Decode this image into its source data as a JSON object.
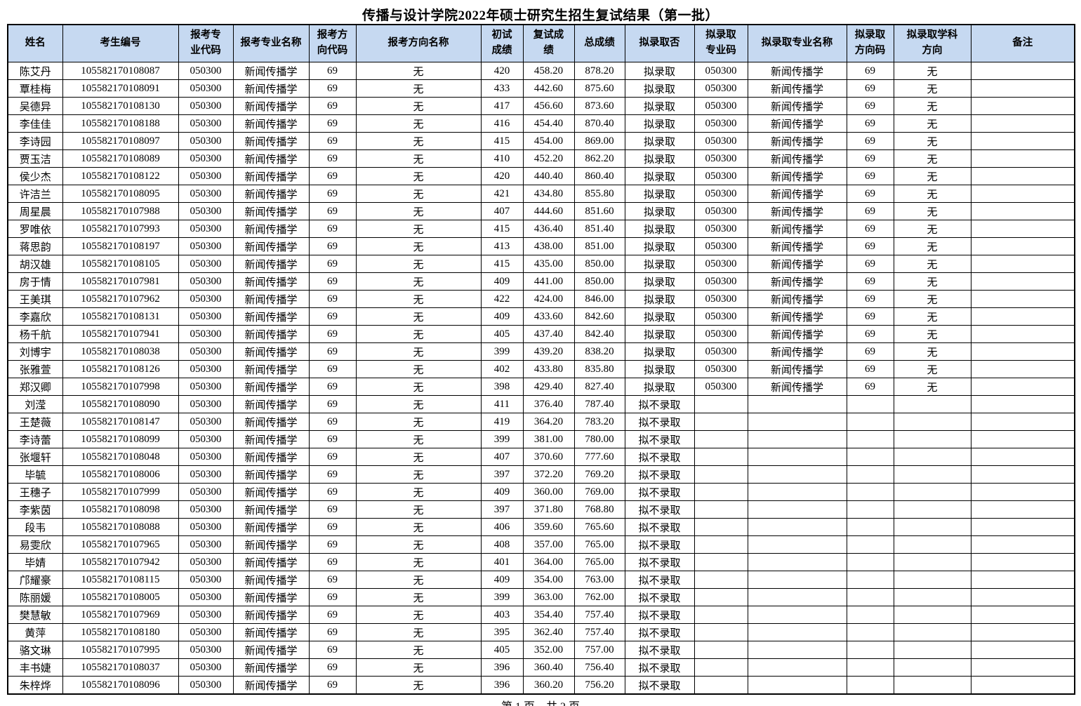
{
  "title": "传播与设计学院2022年硕士研究生招生复试结果（第一批）",
  "footer": {
    "text": "第 1 页，共 2 页"
  },
  "table": {
    "columns": [
      "姓名",
      "考生编号",
      "报考专\n业代码",
      "报考专业名称",
      "报考方\n向代码",
      "报考方向名称",
      "初试\n成绩",
      "复试成\n绩",
      "总成绩",
      "拟录取否",
      "拟录取\n专业码",
      "拟录取专业名称",
      "拟录取\n方向码",
      "拟录取学科\n方向",
      "备注"
    ],
    "column_keys": [
      "name",
      "candidate-id",
      "major-code",
      "major-name",
      "direction-code",
      "direction-name",
      "initial-score",
      "retest-score",
      "total-score",
      "admit-status",
      "admit-major-code",
      "admit-major-name",
      "admit-direction-code",
      "admit-subject-direction",
      "remark"
    ],
    "rows": [
      [
        "陈艾丹",
        "105582170108087",
        "050300",
        "新闻传播学",
        "69",
        "无",
        "420",
        "458.20",
        "878.20",
        "拟录取",
        "050300",
        "新闻传播学",
        "69",
        "无",
        ""
      ],
      [
        "覃桂梅",
        "105582170108091",
        "050300",
        "新闻传播学",
        "69",
        "无",
        "433",
        "442.60",
        "875.60",
        "拟录取",
        "050300",
        "新闻传播学",
        "69",
        "无",
        ""
      ],
      [
        "吴德异",
        "105582170108130",
        "050300",
        "新闻传播学",
        "69",
        "无",
        "417",
        "456.60",
        "873.60",
        "拟录取",
        "050300",
        "新闻传播学",
        "69",
        "无",
        ""
      ],
      [
        "李佳佳",
        "105582170108188",
        "050300",
        "新闻传播学",
        "69",
        "无",
        "416",
        "454.40",
        "870.40",
        "拟录取",
        "050300",
        "新闻传播学",
        "69",
        "无",
        ""
      ],
      [
        "李诗园",
        "105582170108097",
        "050300",
        "新闻传播学",
        "69",
        "无",
        "415",
        "454.00",
        "869.00",
        "拟录取",
        "050300",
        "新闻传播学",
        "69",
        "无",
        ""
      ],
      [
        "贾玉洁",
        "105582170108089",
        "050300",
        "新闻传播学",
        "69",
        "无",
        "410",
        "452.20",
        "862.20",
        "拟录取",
        "050300",
        "新闻传播学",
        "69",
        "无",
        ""
      ],
      [
        "侯少杰",
        "105582170108122",
        "050300",
        "新闻传播学",
        "69",
        "无",
        "420",
        "440.40",
        "860.40",
        "拟录取",
        "050300",
        "新闻传播学",
        "69",
        "无",
        ""
      ],
      [
        "许洁兰",
        "105582170108095",
        "050300",
        "新闻传播学",
        "69",
        "无",
        "421",
        "434.80",
        "855.80",
        "拟录取",
        "050300",
        "新闻传播学",
        "69",
        "无",
        ""
      ],
      [
        "周星晨",
        "105582170107988",
        "050300",
        "新闻传播学",
        "69",
        "无",
        "407",
        "444.60",
        "851.60",
        "拟录取",
        "050300",
        "新闻传播学",
        "69",
        "无",
        ""
      ],
      [
        "罗唯依",
        "105582170107993",
        "050300",
        "新闻传播学",
        "69",
        "无",
        "415",
        "436.40",
        "851.40",
        "拟录取",
        "050300",
        "新闻传播学",
        "69",
        "无",
        ""
      ],
      [
        "蒋思韵",
        "105582170108197",
        "050300",
        "新闻传播学",
        "69",
        "无",
        "413",
        "438.00",
        "851.00",
        "拟录取",
        "050300",
        "新闻传播学",
        "69",
        "无",
        ""
      ],
      [
        "胡汉雄",
        "105582170108105",
        "050300",
        "新闻传播学",
        "69",
        "无",
        "415",
        "435.00",
        "850.00",
        "拟录取",
        "050300",
        "新闻传播学",
        "69",
        "无",
        ""
      ],
      [
        "房于情",
        "105582170107981",
        "050300",
        "新闻传播学",
        "69",
        "无",
        "409",
        "441.00",
        "850.00",
        "拟录取",
        "050300",
        "新闻传播学",
        "69",
        "无",
        ""
      ],
      [
        "王美琪",
        "105582170107962",
        "050300",
        "新闻传播学",
        "69",
        "无",
        "422",
        "424.00",
        "846.00",
        "拟录取",
        "050300",
        "新闻传播学",
        "69",
        "无",
        ""
      ],
      [
        "李嘉欣",
        "105582170108131",
        "050300",
        "新闻传播学",
        "69",
        "无",
        "409",
        "433.60",
        "842.60",
        "拟录取",
        "050300",
        "新闻传播学",
        "69",
        "无",
        ""
      ],
      [
        "杨千航",
        "105582170107941",
        "050300",
        "新闻传播学",
        "69",
        "无",
        "405",
        "437.40",
        "842.40",
        "拟录取",
        "050300",
        "新闻传播学",
        "69",
        "无",
        ""
      ],
      [
        "刘博宇",
        "105582170108038",
        "050300",
        "新闻传播学",
        "69",
        "无",
        "399",
        "439.20",
        "838.20",
        "拟录取",
        "050300",
        "新闻传播学",
        "69",
        "无",
        ""
      ],
      [
        "张雅萱",
        "105582170108126",
        "050300",
        "新闻传播学",
        "69",
        "无",
        "402",
        "433.80",
        "835.80",
        "拟录取",
        "050300",
        "新闻传播学",
        "69",
        "无",
        ""
      ],
      [
        "郑汉卿",
        "105582170107998",
        "050300",
        "新闻传播学",
        "69",
        "无",
        "398",
        "429.40",
        "827.40",
        "拟录取",
        "050300",
        "新闻传播学",
        "69",
        "无",
        ""
      ],
      [
        "刘滢",
        "105582170108090",
        "050300",
        "新闻传播学",
        "69",
        "无",
        "411",
        "376.40",
        "787.40",
        "拟不录取",
        "",
        "",
        "",
        "",
        ""
      ],
      [
        "王楚薇",
        "105582170108147",
        "050300",
        "新闻传播学",
        "69",
        "无",
        "419",
        "364.20",
        "783.20",
        "拟不录取",
        "",
        "",
        "",
        "",
        ""
      ],
      [
        "李诗蕾",
        "105582170108099",
        "050300",
        "新闻传播学",
        "69",
        "无",
        "399",
        "381.00",
        "780.00",
        "拟不录取",
        "",
        "",
        "",
        "",
        ""
      ],
      [
        "张堰轩",
        "105582170108048",
        "050300",
        "新闻传播学",
        "69",
        "无",
        "407",
        "370.60",
        "777.60",
        "拟不录取",
        "",
        "",
        "",
        "",
        ""
      ],
      [
        "毕毓",
        "105582170108006",
        "050300",
        "新闻传播学",
        "69",
        "无",
        "397",
        "372.20",
        "769.20",
        "拟不录取",
        "",
        "",
        "",
        "",
        ""
      ],
      [
        "王穗子",
        "105582170107999",
        "050300",
        "新闻传播学",
        "69",
        "无",
        "409",
        "360.00",
        "769.00",
        "拟不录取",
        "",
        "",
        "",
        "",
        ""
      ],
      [
        "李紫茵",
        "105582170108098",
        "050300",
        "新闻传播学",
        "69",
        "无",
        "397",
        "371.80",
        "768.80",
        "拟不录取",
        "",
        "",
        "",
        "",
        ""
      ],
      [
        "段韦",
        "105582170108088",
        "050300",
        "新闻传播学",
        "69",
        "无",
        "406",
        "359.60",
        "765.60",
        "拟不录取",
        "",
        "",
        "",
        "",
        ""
      ],
      [
        "易雯欣",
        "105582170107965",
        "050300",
        "新闻传播学",
        "69",
        "无",
        "408",
        "357.00",
        "765.00",
        "拟不录取",
        "",
        "",
        "",
        "",
        ""
      ],
      [
        "毕婧",
        "105582170107942",
        "050300",
        "新闻传播学",
        "69",
        "无",
        "401",
        "364.00",
        "765.00",
        "拟不录取",
        "",
        "",
        "",
        "",
        ""
      ],
      [
        "邝耀豪",
        "105582170108115",
        "050300",
        "新闻传播学",
        "69",
        "无",
        "409",
        "354.00",
        "763.00",
        "拟不录取",
        "",
        "",
        "",
        "",
        ""
      ],
      [
        "陈丽媛",
        "105582170108005",
        "050300",
        "新闻传播学",
        "69",
        "无",
        "399",
        "363.00",
        "762.00",
        "拟不录取",
        "",
        "",
        "",
        "",
        ""
      ],
      [
        "樊慧敏",
        "105582170107969",
        "050300",
        "新闻传播学",
        "69",
        "无",
        "403",
        "354.40",
        "757.40",
        "拟不录取",
        "",
        "",
        "",
        "",
        ""
      ],
      [
        "黄萍",
        "105582170108180",
        "050300",
        "新闻传播学",
        "69",
        "无",
        "395",
        "362.40",
        "757.40",
        "拟不录取",
        "",
        "",
        "",
        "",
        ""
      ],
      [
        "骆文琳",
        "105582170107995",
        "050300",
        "新闻传播学",
        "69",
        "无",
        "405",
        "352.00",
        "757.00",
        "拟不录取",
        "",
        "",
        "",
        "",
        ""
      ],
      [
        "丰书婕",
        "105582170108037",
        "050300",
        "新闻传播学",
        "69",
        "无",
        "396",
        "360.40",
        "756.40",
        "拟不录取",
        "",
        "",
        "",
        "",
        ""
      ],
      [
        "朱梓烨",
        "105582170108096",
        "050300",
        "新闻传播学",
        "69",
        "无",
        "396",
        "360.20",
        "756.20",
        "拟不录取",
        "",
        "",
        "",
        "",
        ""
      ]
    ],
    "header_bg_color": "#c6d9f1"
  }
}
